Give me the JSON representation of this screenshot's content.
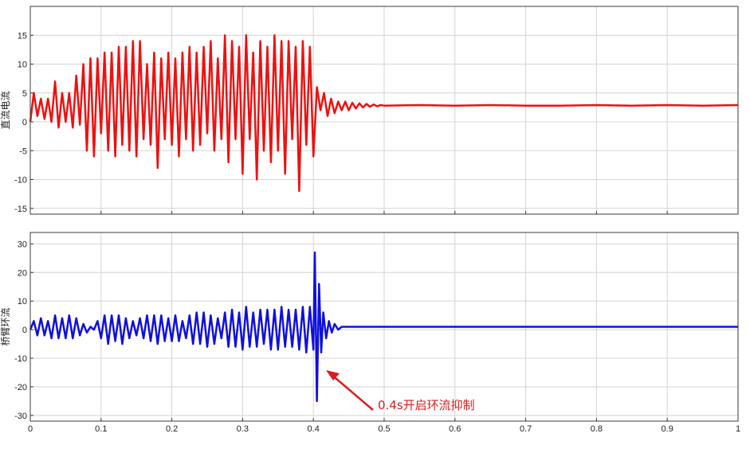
{
  "chart_data": [
    {
      "type": "line",
      "ylabel": "直流电流",
      "xlabel": "",
      "xlim": [
        0,
        1
      ],
      "ylim": [
        -16,
        20
      ],
      "xticks": [
        "0",
        "0.1",
        "0.2",
        "0.3",
        "0.4",
        "0.5",
        "0.6",
        "0.7",
        "0.8",
        "0.9",
        "1"
      ],
      "yticks": [
        "-15",
        "-10",
        "-5",
        "0",
        "5",
        "10",
        "15"
      ],
      "grid": true,
      "series": [
        {
          "color": "#ee1111",
          "x": [
            0.0,
            0.005,
            0.01,
            0.015,
            0.02,
            0.025,
            0.03,
            0.035,
            0.04,
            0.045,
            0.05,
            0.055,
            0.06,
            0.065,
            0.07,
            0.075,
            0.08,
            0.085,
            0.09,
            0.095,
            0.1,
            0.105,
            0.11,
            0.115,
            0.12,
            0.125,
            0.13,
            0.135,
            0.14,
            0.145,
            0.15,
            0.155,
            0.16,
            0.165,
            0.17,
            0.175,
            0.18,
            0.185,
            0.19,
            0.195,
            0.2,
            0.205,
            0.21,
            0.215,
            0.22,
            0.225,
            0.23,
            0.235,
            0.24,
            0.245,
            0.25,
            0.255,
            0.26,
            0.265,
            0.27,
            0.275,
            0.28,
            0.285,
            0.29,
            0.295,
            0.3,
            0.305,
            0.31,
            0.315,
            0.32,
            0.325,
            0.33,
            0.335,
            0.34,
            0.345,
            0.35,
            0.355,
            0.36,
            0.365,
            0.37,
            0.375,
            0.38,
            0.385,
            0.39,
            0.395,
            0.4,
            0.405,
            0.41,
            0.415,
            0.42,
            0.425,
            0.43,
            0.435,
            0.44,
            0.445,
            0.45,
            0.455,
            0.46,
            0.465,
            0.47,
            0.475,
            0.48,
            0.485,
            0.49,
            0.495,
            0.5,
            0.55,
            0.6,
            0.65,
            0.7,
            0.75,
            0.8,
            0.85,
            0.9,
            0.95,
            1.0
          ],
          "y": [
            0,
            5,
            1,
            4,
            0.5,
            4,
            0,
            7,
            -1,
            5,
            0,
            5,
            -1,
            8,
            -0.5,
            10,
            -5,
            11,
            -6,
            11,
            -2,
            12,
            -5,
            12,
            -6,
            13,
            -4,
            13,
            -5,
            14,
            -6,
            14,
            -3,
            10,
            -4,
            12,
            -8,
            11,
            -3,
            12,
            -4,
            11,
            -6,
            12,
            -3,
            13,
            -5,
            12,
            -4,
            13,
            -2,
            14,
            -5,
            11,
            -3,
            15,
            -7,
            14,
            -3,
            13,
            -9,
            15,
            -3,
            12,
            -10,
            14,
            -5,
            13,
            -7,
            15,
            -5,
            14,
            -9,
            14,
            -3,
            13,
            -12,
            14,
            -4,
            13,
            -6,
            6,
            2,
            5,
            1,
            4,
            1.5,
            3.5,
            2,
            3.5,
            2,
            3.3,
            2.3,
            3.2,
            2.5,
            3.1,
            2.6,
            3.0,
            2.7,
            2.9,
            2.8,
            2.9,
            2.8,
            2.9,
            2.8,
            2.8,
            2.9,
            2.8,
            2.9,
            2.8,
            2.9
          ]
        }
      ]
    },
    {
      "type": "line",
      "ylabel": "桥臂环流",
      "xlabel": "",
      "xlim": [
        0,
        1
      ],
      "ylim": [
        -32,
        34
      ],
      "xticks": [
        "0",
        "0.1",
        "0.2",
        "0.3",
        "0.4",
        "0.5",
        "0.6",
        "0.7",
        "0.8",
        "0.9",
        "1"
      ],
      "yticks": [
        "-30",
        "-20",
        "-10",
        "0",
        "10",
        "20",
        "30"
      ],
      "grid": true,
      "series": [
        {
          "color": "#1010dd",
          "x": [
            0.0,
            0.005,
            0.01,
            0.015,
            0.02,
            0.025,
            0.03,
            0.035,
            0.04,
            0.045,
            0.05,
            0.055,
            0.06,
            0.065,
            0.07,
            0.075,
            0.08,
            0.085,
            0.09,
            0.095,
            0.1,
            0.105,
            0.11,
            0.115,
            0.12,
            0.125,
            0.13,
            0.135,
            0.14,
            0.145,
            0.15,
            0.155,
            0.16,
            0.165,
            0.17,
            0.175,
            0.18,
            0.185,
            0.19,
            0.195,
            0.2,
            0.205,
            0.21,
            0.215,
            0.22,
            0.225,
            0.23,
            0.235,
            0.24,
            0.245,
            0.25,
            0.255,
            0.26,
            0.265,
            0.27,
            0.275,
            0.28,
            0.285,
            0.29,
            0.295,
            0.3,
            0.305,
            0.31,
            0.315,
            0.32,
            0.325,
            0.33,
            0.335,
            0.34,
            0.345,
            0.35,
            0.355,
            0.36,
            0.365,
            0.37,
            0.375,
            0.38,
            0.385,
            0.39,
            0.395,
            0.4,
            0.402,
            0.405,
            0.408,
            0.411,
            0.414,
            0.418,
            0.422,
            0.426,
            0.43,
            0.435,
            0.44,
            0.45,
            0.5,
            0.6,
            0.7,
            0.8,
            0.9,
            1.0
          ],
          "y": [
            0,
            3,
            -2,
            4,
            -2,
            3,
            -3,
            5,
            -3,
            4,
            -3,
            5,
            -3,
            4,
            -2,
            2,
            -1,
            1,
            0,
            3,
            -3,
            5,
            -5,
            5,
            -4,
            5,
            -5,
            4,
            -3,
            3,
            -2,
            4,
            -3,
            5,
            -4,
            5,
            -5,
            5,
            -4,
            4,
            -4,
            5,
            -4,
            3,
            -3,
            5,
            -5,
            6,
            -5,
            6,
            -6,
            5,
            -5,
            4,
            -3,
            6,
            -6,
            7,
            -6,
            6,
            -7,
            8,
            -6,
            6,
            -6,
            7,
            -5,
            7,
            -7,
            7,
            -7,
            8,
            -6,
            7,
            -6,
            7,
            -7,
            8,
            -8,
            8,
            -7,
            27,
            -25,
            16,
            -8,
            6,
            -3,
            3,
            -1,
            2,
            0,
            1,
            1,
            1,
            1,
            1,
            1,
            1,
            1
          ]
        }
      ]
    }
  ],
  "annotation": {
    "text": "0.4s开启环流抑制",
    "color": "#d81e1e"
  }
}
